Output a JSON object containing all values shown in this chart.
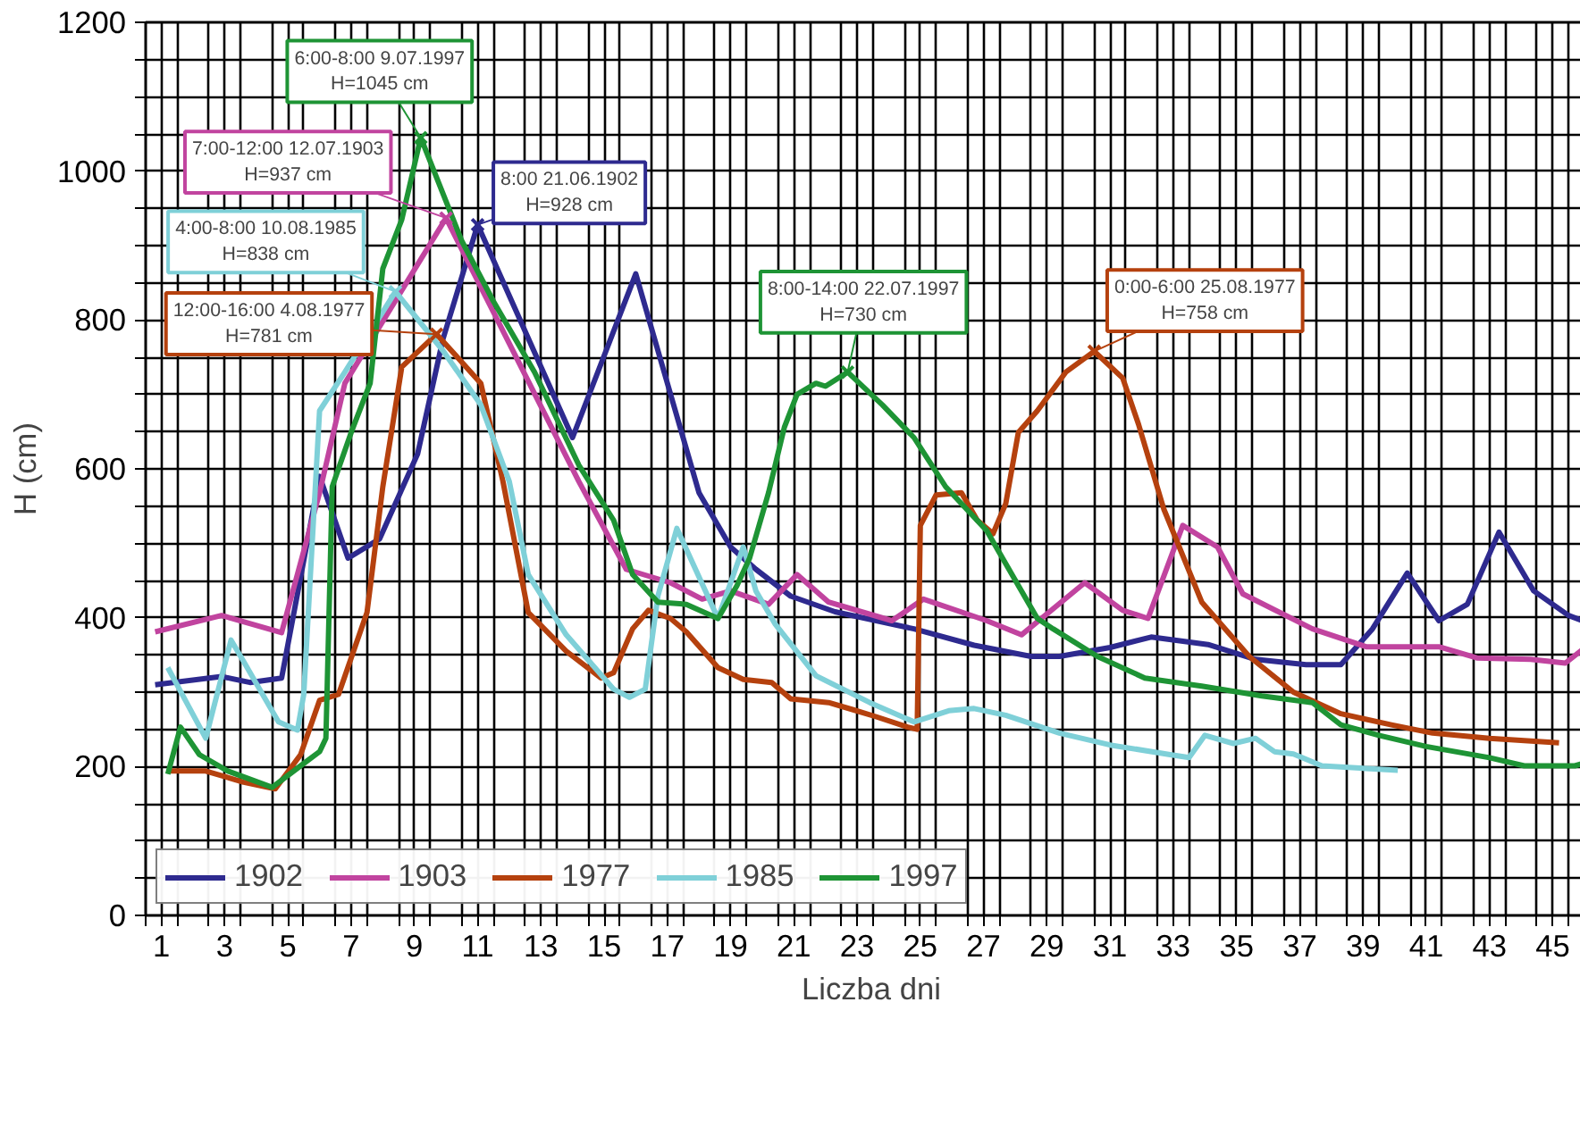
{
  "chart_data": {
    "type": "line",
    "xlabel": "Liczba dni",
    "ylabel": "H (cm)",
    "xlim": [
      0.5,
      46.4
    ],
    "ylim": [
      0,
      1200
    ],
    "xticks": [
      1,
      3,
      5,
      7,
      9,
      11,
      13,
      15,
      17,
      19,
      21,
      23,
      25,
      27,
      29,
      31,
      33,
      35,
      37,
      39,
      41,
      43,
      45,
      {
        "value": 0.5,
        "label": null
      },
      {
        "value": 1.5,
        "label": null
      },
      {
        "value": 2.5,
        "label": null
      },
      {
        "value": 3.5,
        "label": null
      },
      {
        "value": 4.5,
        "label": null
      },
      {
        "value": 5.5,
        "label": null
      },
      {
        "value": 6.5,
        "label": null
      },
      {
        "value": 7.5,
        "label": null
      },
      {
        "value": 8.5,
        "label": null
      },
      {
        "value": 9.5,
        "label": null
      },
      {
        "value": 10.5,
        "label": null
      },
      {
        "value": 11.5,
        "label": null
      },
      {
        "value": 12.5,
        "label": null
      },
      {
        "value": 13.5,
        "label": null
      },
      {
        "value": 14.5,
        "label": null
      },
      {
        "value": 15.5,
        "label": null
      },
      {
        "value": 16.5,
        "label": null
      },
      {
        "value": 17.5,
        "label": null
      },
      {
        "value": 18.5,
        "label": null
      },
      {
        "value": 19.5,
        "label": null
      },
      {
        "value": 20.5,
        "label": null
      },
      {
        "value": 21.5,
        "label": null
      },
      {
        "value": 22.5,
        "label": null
      },
      {
        "value": 23.5,
        "label": null
      },
      {
        "value": 24.5,
        "label": null
      },
      {
        "value": 25.5,
        "label": null
      },
      {
        "value": 26.5,
        "label": null
      },
      {
        "value": 27.5,
        "label": null
      },
      {
        "value": 28.5,
        "label": null
      },
      {
        "value": 29.5,
        "label": null
      },
      {
        "value": 30.5,
        "label": null
      },
      {
        "value": 31.5,
        "label": null
      },
      {
        "value": 32.5,
        "label": null
      },
      {
        "value": 33.5,
        "label": null
      },
      {
        "value": 34.5,
        "label": null
      },
      {
        "value": 35.5,
        "label": null
      },
      {
        "value": 36.5,
        "label": null
      },
      {
        "value": 37.5,
        "label": null
      },
      {
        "value": 38.5,
        "label": null
      },
      {
        "value": 39.5,
        "label": null
      },
      {
        "value": 40.5,
        "label": null
      },
      {
        "value": 41.5,
        "label": null
      },
      {
        "value": 42.5,
        "label": null
      },
      {
        "value": 43.5,
        "label": null
      },
      {
        "value": 44.5,
        "label": null
      },
      {
        "value": 45.5,
        "label": null
      }
    ],
    "yticks": [
      0,
      200,
      400,
      600,
      800,
      1000,
      1200,
      {
        "value": 50,
        "label": null
      },
      {
        "value": 100,
        "label": null
      },
      {
        "value": 150,
        "label": null
      },
      {
        "value": 250,
        "label": null
      },
      {
        "value": 300,
        "label": null
      },
      {
        "value": 350,
        "label": null
      },
      {
        "value": 450,
        "label": null
      },
      {
        "value": 500,
        "label": null
      },
      {
        "value": 550,
        "label": null
      },
      {
        "value": 650,
        "label": null
      },
      {
        "value": 700,
        "label": null
      },
      {
        "value": 750,
        "label": null
      },
      {
        "value": 850,
        "label": null
      },
      {
        "value": 900,
        "label": null
      },
      {
        "value": 950,
        "label": null
      },
      {
        "value": 1050,
        "label": null
      },
      {
        "value": 1100,
        "label": null
      },
      {
        "value": 1150,
        "label": null
      }
    ],
    "grid": true,
    "legend": "bottom left",
    "line_style": "solid",
    "series": [
      {
        "name": "1902",
        "color": "#2e2a8f",
        "x": [
          0.8,
          2.9,
          3.8,
          4.8,
          6.0,
          6.9,
          7.9,
          9.1,
          9.9,
          11.0,
          14.0,
          16.0,
          18.0,
          19.0,
          19.8,
          20.9,
          22.3,
          24.8,
          26.7,
          28.5,
          29.4,
          31.0,
          32.3,
          34.1,
          35.6,
          37.2,
          38.3,
          39.3,
          40.4,
          41.4,
          42.3,
          43.3,
          44.4,
          45.5,
          46.2
        ],
        "values": [
          310,
          321,
          313,
          319,
          590,
          480,
          506,
          620,
          774,
          928,
          642,
          862,
          568,
          495,
          465,
          429,
          408,
          385,
          363,
          348,
          348,
          360,
          374,
          364,
          344,
          337,
          337,
          385,
          460,
          396,
          418,
          515,
          436,
          403,
          392
        ]
      },
      {
        "name": "1903",
        "color": "#c1449f",
        "x": [
          0.8,
          2.9,
          4.8,
          6.0,
          6.8,
          10.0,
          14.2,
          15.7,
          17.1,
          18.1,
          19.0,
          20.2,
          21.1,
          22.1,
          24.1,
          25.1,
          27.1,
          28.2,
          30.2,
          31.4,
          32.2,
          33.3,
          34.4,
          35.2,
          37.4,
          39.1,
          41.4,
          42.6,
          44.3,
          45.4,
          46.2
        ],
        "values": [
          381,
          403,
          380,
          568,
          715,
          937,
          583,
          465,
          447,
          425,
          436,
          418,
          458,
          421,
          396,
          425,
          396,
          377,
          447,
          410,
          399,
          524,
          495,
          432,
          385,
          361,
          361,
          346,
          344,
          339,
          366
        ]
      },
      {
        "name": "1977",
        "color": "#b5410e",
        "x": [
          1.2,
          2.4,
          3.6,
          4.6,
          5.4,
          6.0,
          6.6,
          7.5,
          8.0,
          8.6,
          9.7,
          11.1,
          11.8,
          12.6,
          13.8,
          14.9,
          15.3,
          15.9,
          16.4,
          17.1,
          17.6,
          18.6,
          19.4,
          20.3,
          20.9,
          22.1,
          22.9,
          23.6,
          24.6,
          24.9,
          25.0,
          25.5,
          26.3,
          26.8,
          27.3,
          27.7,
          28.1,
          28.7,
          29.6,
          30.5,
          31.4,
          31.9,
          32.7,
          33.9,
          35.4,
          36.8,
          38.3,
          39.9,
          41.2,
          43.0,
          45.2
        ],
        "values": [
          194,
          194,
          179,
          170,
          216,
          289,
          297,
          407,
          576,
          737,
          781,
          715,
          583,
          407,
          355,
          319,
          326,
          385,
          410,
          399,
          381,
          333,
          317,
          313,
          291,
          286,
          276,
          267,
          253,
          250,
          524,
          565,
          568,
          531,
          513,
          553,
          649,
          678,
          730,
          758,
          722,
          660,
          546,
          421,
          348,
          300,
          271,
          256,
          245,
          238,
          232
        ]
      },
      {
        "name": "1985",
        "color": "#7fd0d8",
        "x": [
          1.2,
          2.4,
          3.2,
          3.6,
          4.7,
          5.3,
          5.5,
          6.0,
          6.8,
          8.4,
          9.9,
          11.1,
          12.0,
          12.6,
          13.8,
          15.3,
          15.8,
          16.3,
          16.7,
          17.3,
          18.6,
          19.4,
          19.8,
          20.4,
          21.7,
          23.4,
          24.8,
          25.9,
          26.7,
          27.7,
          29.4,
          31.0,
          32.9,
          33.5,
          34.0,
          34.9,
          35.6,
          36.2,
          36.8,
          37.7,
          40.1
        ],
        "values": [
          333,
          238,
          370,
          341,
          260,
          249,
          297,
          678,
          730,
          838,
          759,
          686,
          583,
          458,
          377,
          304,
          293,
          304,
          429,
          520,
          399,
          495,
          436,
          392,
          322,
          286,
          260,
          275,
          278,
          269,
          245,
          229,
          216,
          212,
          242,
          231,
          238,
          220,
          217,
          201,
          195
        ]
      },
      {
        "name": "1997",
        "color": "#1e9435",
        "x": [
          1.2,
          1.6,
          2.2,
          3.1,
          4.5,
          5.4,
          6.0,
          6.2,
          6.4,
          7.0,
          7.6,
          8.0,
          8.6,
          9.2,
          10.5,
          11.5,
          12.8,
          14.2,
          15.3,
          15.9,
          16.7,
          17.6,
          18.6,
          19.2,
          19.6,
          20.2,
          20.7,
          21.1,
          21.7,
          22.0,
          22.7,
          23.8,
          24.8,
          25.8,
          27.1,
          28.7,
          29.2,
          30.6,
          32.1,
          33.9,
          35.8,
          37.4,
          38.3,
          39.5,
          41.0,
          43.0,
          44.1,
          45.7,
          46.1
        ],
        "values": [
          190,
          253,
          216,
          194,
          172,
          201,
          220,
          238,
          576,
          649,
          715,
          869,
          935,
          1045,
          906,
          825,
          730,
          605,
          531,
          458,
          421,
          418,
          399,
          443,
          480,
          568,
          656,
          700,
          715,
          711,
          730,
          686,
          642,
          576,
          517,
          399,
          385,
          348,
          319,
          308,
          295,
          286,
          256,
          242,
          227,
          212,
          201,
          201,
          206
        ]
      }
    ],
    "annotations": [
      {
        "text": "6:00-8:00 9.07.1997\nH=1045 cm",
        "x": 9.2,
        "y": 1045
      },
      {
        "text": "7:00-12:00 12.07.1903\nH=937 cm",
        "x": 10.0,
        "y": 937
      },
      {
        "text": "8:00 21.06.1902\nH=928 cm",
        "x": 11.0,
        "y": 928
      },
      {
        "text": "4:00-8:00 10.08.1985\nH=838 cm",
        "x": 8.4,
        "y": 838
      },
      {
        "text": "12:00-16:00 4.08.1977\nH=781 cm",
        "x": 9.7,
        "y": 781
      },
      {
        "text": "8:00-14:00 22.07.1997\nH=730 cm",
        "x": 22.7,
        "y": 730
      },
      {
        "text": "0:00-6:00 25.08.1977\nH=758 cm",
        "x": 30.5,
        "y": 758
      }
    ]
  }
}
